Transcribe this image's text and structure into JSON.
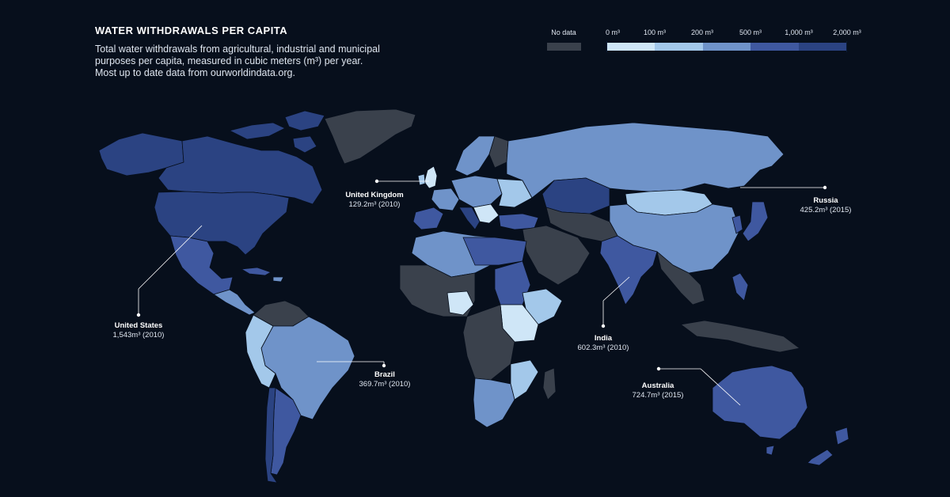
{
  "title": "WATER WITHDRAWALS PER CAPITA",
  "subtitle_lines": [
    "Total water withdrawals from agricultural, industrial and municipal",
    "purposes per capita, measured in cubic meters (m³) per year.",
    "Most up to date data from ourworldindata.org."
  ],
  "legend": {
    "no_data_label": "No data",
    "no_data_color": "#3a414c",
    "tick_labels": [
      "0 m³",
      "100 m³",
      "200 m³",
      "500 m³",
      "1,000 m³",
      "2,000 m³"
    ],
    "colors": [
      "#cfe6f7",
      "#a3c8ea",
      "#6f93c9",
      "#3f58a0",
      "#2b4382"
    ]
  },
  "colors": {
    "background": "#070f1c",
    "no_data": "#3a414c",
    "bin_0_100": "#cfe6f7",
    "bin_100_200": "#a3c8ea",
    "bin_200_500": "#6f93c9",
    "bin_500_1000": "#3f58a0",
    "bin_1000_2000": "#2b4382"
  },
  "callouts": [
    {
      "name": "United States",
      "value": "1,543m³ (2010)"
    },
    {
      "name": "United Kingdom",
      "value": "129.2m³ (2010)"
    },
    {
      "name": "Brazil",
      "value": "369.7m³ (2010)"
    },
    {
      "name": "India",
      "value": "602.3m³ (2010)"
    },
    {
      "name": "Russia",
      "value": "425.2m³ (2015)"
    },
    {
      "name": "Australia",
      "value": "724.7m³ (2015)"
    }
  ]
}
